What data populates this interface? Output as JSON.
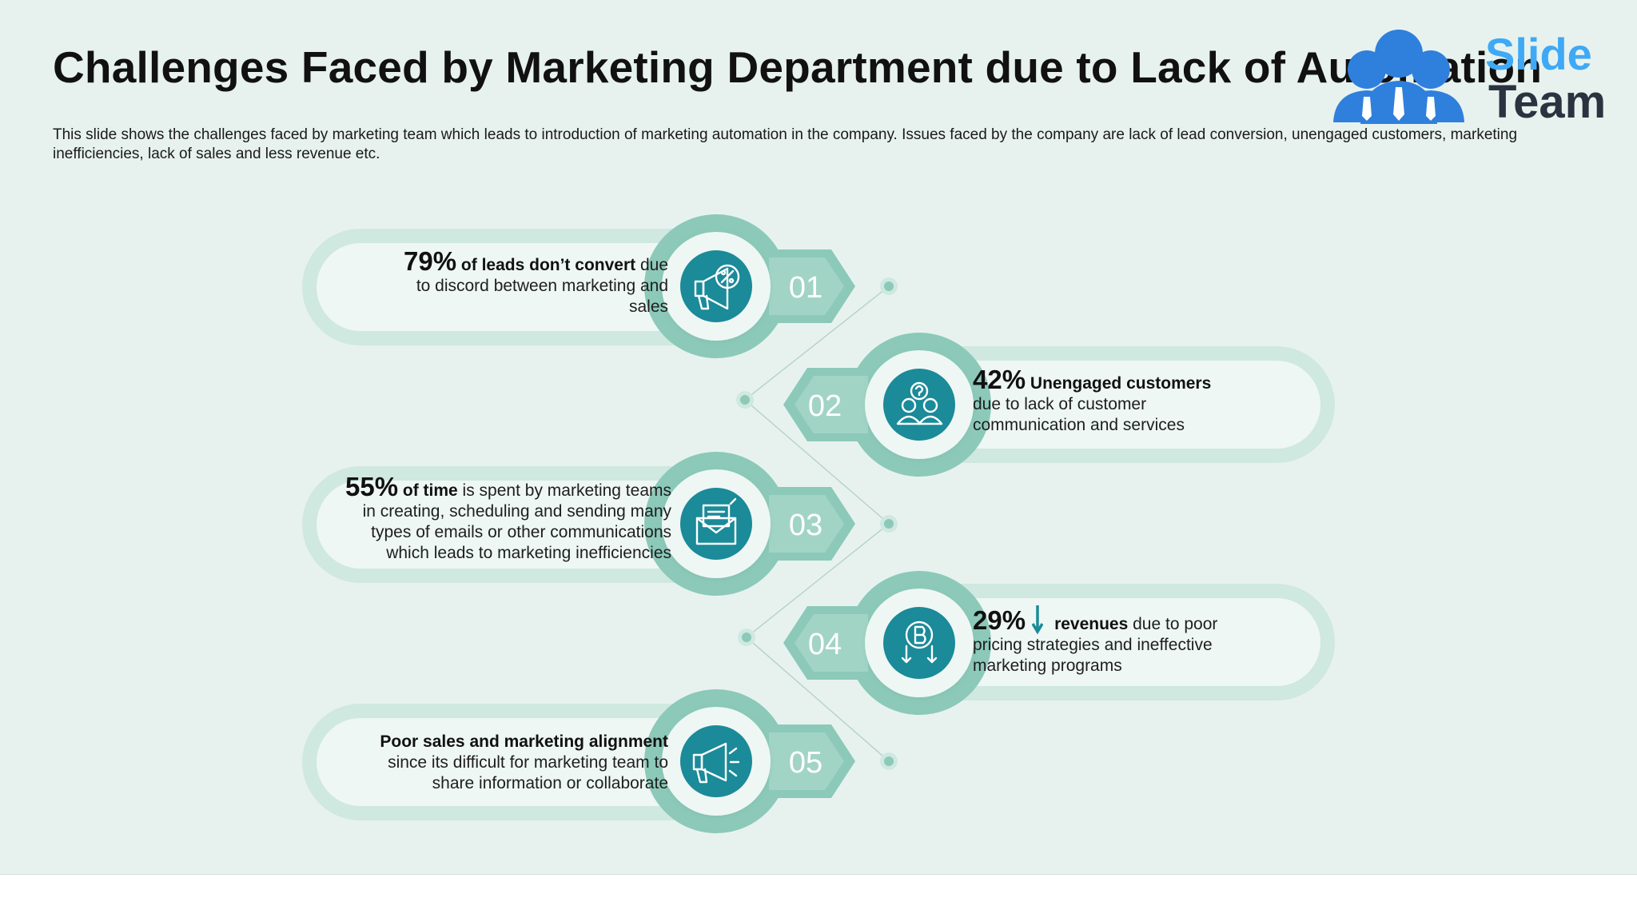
{
  "title": "Challenges Faced by Marketing Department due to Lack of Automation",
  "subtitle": "This slide shows the challenges faced by marketing team which leads to introduction of marketing automation in the company. Issues faced by the company are lack of lead conversion, unengaged customers, marketing inefficiencies, lack of sales and less revenue etc.",
  "logo": {
    "word1": "Slide",
    "word2": "Team"
  },
  "colors": {
    "accent": "#1b8a99",
    "ring": "#8cc9b8",
    "band": "#cfe8e0",
    "background": "#e7f2ef"
  },
  "steps": [
    {
      "number": "01",
      "stat": "79%",
      "bold": " of leads don’t convert",
      "text1": " due",
      "text2": "to discord between marketing and",
      "text3": "sales",
      "icon": "megaphone-percent-icon"
    },
    {
      "number": "02",
      "stat": "42%",
      "bold": " Unengaged customers",
      "text1": "",
      "text2": "due to lack of customer",
      "text3": "communication and services",
      "icon": "customer-question-icon"
    },
    {
      "number": "03",
      "stat": "55%",
      "bold": " of  time",
      "text1": " is spent by marketing teams",
      "text2": "in creating, scheduling and sending many",
      "text3": "types of emails or other communications",
      "text4": "which leads to marketing inefficiencies",
      "icon": "email-envelope-icon"
    },
    {
      "number": "04",
      "stat": "29%",
      "bold": "revenues",
      "text1": " due to poor",
      "text2": "pricing strategies and ineffective",
      "text3": "marketing programs",
      "icon": "bitcoin-down-icon"
    },
    {
      "number": "05",
      "stat": "",
      "bold": "Poor sales and marketing alignment",
      "text1": "",
      "text2": "since its difficult for marketing team to",
      "text3": "share information or collaborate",
      "icon": "megaphone-icon"
    }
  ]
}
